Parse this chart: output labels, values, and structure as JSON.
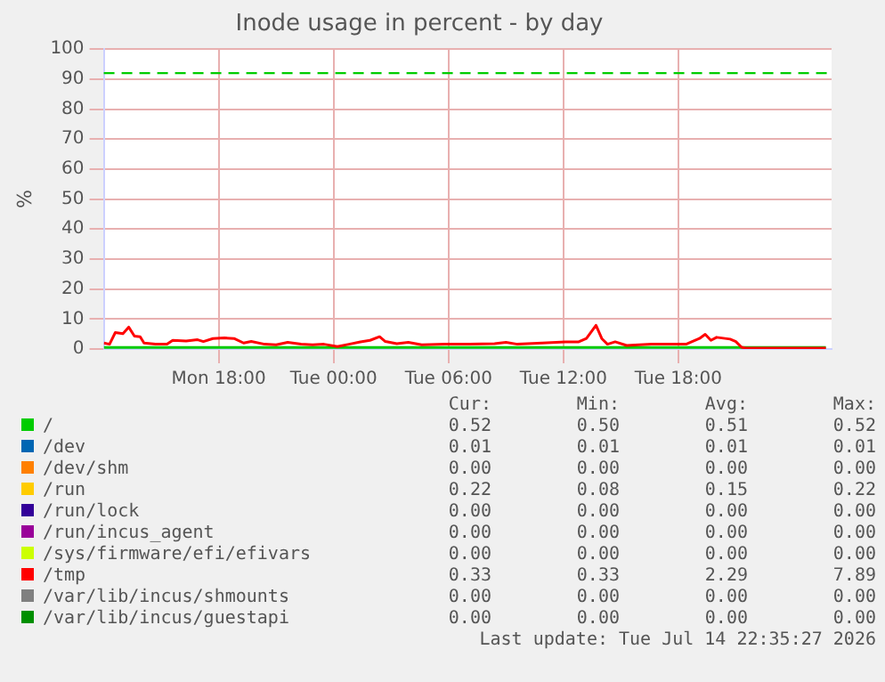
{
  "chart_data": {
    "type": "line",
    "title": "Inode usage in percent - by day",
    "ylabel": "%",
    "xlim": [
      "2026-07-13T12:00",
      "2026-07-15T02:00"
    ],
    "xticks": [
      {
        "value": "2026-07-13T18:00",
        "label": "Mon 18:00"
      },
      {
        "value": "2026-07-14T00:00",
        "label": "Tue 00:00"
      },
      {
        "value": "2026-07-14T06:00",
        "label": "Tue 06:00"
      },
      {
        "value": "2026-07-14T12:00",
        "label": "Tue 12:00"
      },
      {
        "value": "2026-07-14T18:00",
        "label": "Tue 18:00"
      }
    ],
    "ylim": [
      0,
      100
    ],
    "yticks": [
      0,
      10,
      20,
      30,
      40,
      50,
      60,
      70,
      80,
      90,
      100
    ],
    "grid": true,
    "legend": "bottom",
    "marker": "none",
    "line_style": "solid",
    "ref_lines": [
      {
        "axis": "y",
        "value": 92,
        "color": "#00cc00",
        "line_style": "dashed"
      }
    ],
    "series": [
      {
        "name": "/",
        "color": "#00cc00",
        "x": [
          "2026-07-13T12:00",
          "2026-07-15T01:42"
        ],
        "values": [
          0.5,
          0.5
        ]
      },
      {
        "name": "/dev",
        "color": "#0066b3"
      },
      {
        "name": "/dev/shm",
        "color": "#ff8000"
      },
      {
        "name": "/run",
        "color": "#ffcc00"
      },
      {
        "name": "/run/lock",
        "color": "#330099"
      },
      {
        "name": "/run/incus_agent",
        "color": "#990099"
      },
      {
        "name": "/sys/firmware/efi/efivars",
        "color": "#ccff00"
      },
      {
        "name": "/tmp",
        "color": "#ff0000",
        "x": [
          "2026-07-13T12:00",
          "2026-07-13T12:18",
          "2026-07-13T12:36",
          "2026-07-13T13:00",
          "2026-07-13T13:18",
          "2026-07-13T13:36",
          "2026-07-13T13:54",
          "2026-07-13T14:06",
          "2026-07-13T14:42",
          "2026-07-13T15:18",
          "2026-07-13T15:36",
          "2026-07-13T16:18",
          "2026-07-13T16:54",
          "2026-07-13T17:12",
          "2026-07-13T17:42",
          "2026-07-13T18:18",
          "2026-07-13T18:48",
          "2026-07-13T19:18",
          "2026-07-13T19:42",
          "2026-07-13T20:24",
          "2026-07-13T21:00",
          "2026-07-13T21:36",
          "2026-07-13T22:18",
          "2026-07-13T22:54",
          "2026-07-13T23:30",
          "2026-07-14T00:12",
          "2026-07-14T00:48",
          "2026-07-14T01:24",
          "2026-07-14T01:54",
          "2026-07-14T02:24",
          "2026-07-14T02:42",
          "2026-07-14T03:18",
          "2026-07-14T03:54",
          "2026-07-14T04:36",
          "2026-07-14T05:48",
          "2026-07-14T07:06",
          "2026-07-14T08:24",
          "2026-07-14T09:00",
          "2026-07-14T09:36",
          "2026-07-14T10:54",
          "2026-07-14T12:06",
          "2026-07-14T12:48",
          "2026-07-14T13:12",
          "2026-07-14T13:42",
          "2026-07-14T14:00",
          "2026-07-14T14:18",
          "2026-07-14T14:42",
          "2026-07-14T15:18",
          "2026-07-14T16:36",
          "2026-07-14T17:30",
          "2026-07-14T18:24",
          "2026-07-14T19:06",
          "2026-07-14T19:24",
          "2026-07-14T19:42",
          "2026-07-14T20:00",
          "2026-07-14T20:42",
          "2026-07-14T21:00",
          "2026-07-14T21:18",
          "2026-07-14T21:30",
          "2026-07-15T01:42"
        ],
        "values": [
          2,
          1.6,
          5.5,
          5.1,
          7.3,
          4.3,
          4.1,
          2,
          1.6,
          1.6,
          2.9,
          2.7,
          3.1,
          2.5,
          3.5,
          3.7,
          3.5,
          2,
          2.5,
          1.6,
          1.4,
          2.2,
          1.6,
          1.4,
          1.6,
          0.8,
          1.6,
          2.4,
          2.9,
          4.1,
          2.5,
          1.8,
          2.2,
          1.4,
          1.6,
          1.6,
          1.8,
          2.2,
          1.6,
          2,
          2.4,
          2.4,
          3.5,
          7.9,
          3.5,
          1.6,
          2.4,
          1.2,
          1.6,
          1.6,
          1.6,
          3.5,
          4.9,
          2.9,
          3.9,
          3.3,
          2.5,
          0.6,
          0.3,
          0.3
        ]
      },
      {
        "name": "/var/lib/incus/shmounts",
        "color": "#808080"
      },
      {
        "name": "/var/lib/incus/guestapi",
        "color": "#008f00"
      }
    ],
    "annotations": [
      "Cur:",
      "Min:",
      "Avg:",
      "Max:",
      "0.52",
      "0.50",
      "0.51",
      "0.52",
      "0.01",
      "0.01",
      "0.01",
      "0.01",
      "0.00",
      "0.00",
      "0.00",
      "0.00",
      "0.22",
      "0.08",
      "0.15",
      "0.22",
      "0.00",
      "0.00",
      "0.00",
      "0.00",
      "0.00",
      "0.00",
      "0.00",
      "0.00",
      "0.00",
      "0.00",
      "0.00",
      "0.00",
      "0.33",
      "0.33",
      "2.29",
      "7.89",
      "0.00",
      "0.00",
      "0.00",
      "0.00",
      "0.00",
      "0.00",
      "0.00",
      "0.00",
      "Last update: Tue Jul 14 22:35:27 2026"
    ]
  }
}
